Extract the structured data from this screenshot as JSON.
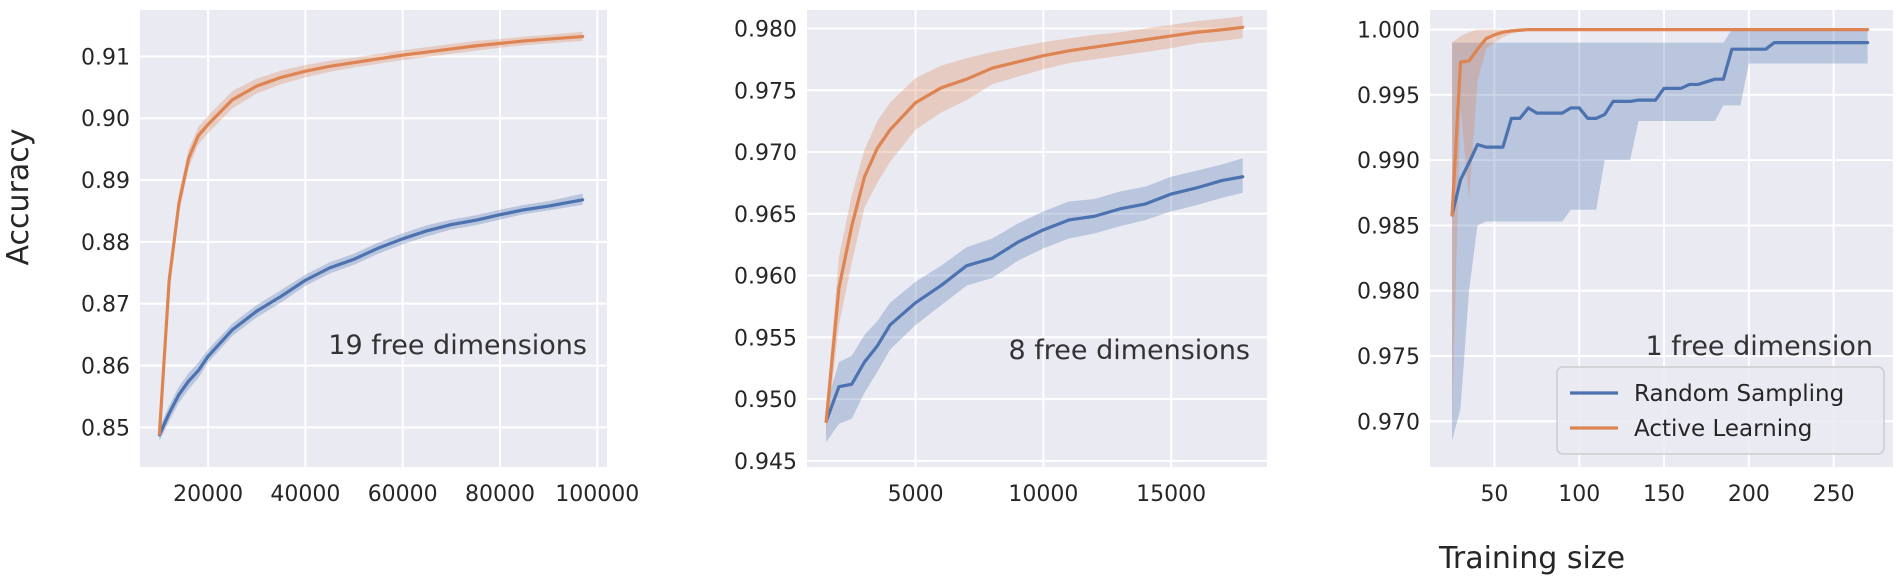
{
  "figure": {
    "ylabel": "Accuracy",
    "xlabel": "Training size"
  },
  "colors": {
    "panel_bg": "#eaeaf2",
    "grid": "#ffffff",
    "random_sampling": "#4c72b0",
    "active_learning": "#dd8452",
    "text": "#262626"
  },
  "legend": {
    "placement": "lower-right",
    "panel": 2,
    "entries": [
      "Random Sampling",
      "Active Learning"
    ]
  },
  "chart_data": [
    {
      "type": "line",
      "annotation": "19 free dimensions",
      "xlim": [
        6000,
        102000
      ],
      "ylim": [
        0.8436,
        0.9175
      ],
      "xticks": [
        20000,
        40000,
        60000,
        80000,
        100000
      ],
      "xtick_labels": [
        "20000",
        "40000",
        "60000",
        "80000",
        "100000"
      ],
      "yticks": [
        0.85,
        0.86,
        0.87,
        0.88,
        0.89,
        0.9,
        0.91
      ],
      "ytick_labels": [
        "0.85",
        "0.86",
        "0.87",
        "0.88",
        "0.89",
        "0.90",
        "0.91"
      ],
      "grid": true,
      "series": [
        {
          "name": "Random Sampling",
          "x": [
            10000,
            12000,
            14000,
            16000,
            18000,
            20000,
            25000,
            30000,
            35000,
            40000,
            45000,
            50000,
            55000,
            60000,
            65000,
            70000,
            75000,
            80000,
            85000,
            90000,
            97000
          ],
          "y": [
            0.8488,
            0.8523,
            0.8553,
            0.8575,
            0.8592,
            0.8615,
            0.8658,
            0.8688,
            0.8712,
            0.8738,
            0.8758,
            0.8772,
            0.879,
            0.8805,
            0.8818,
            0.8828,
            0.8835,
            0.8844,
            0.8852,
            0.8858,
            0.8868
          ],
          "lower": [
            0.8478,
            0.851,
            0.854,
            0.8562,
            0.858,
            0.8605,
            0.8648,
            0.8678,
            0.8702,
            0.8729,
            0.8749,
            0.8763,
            0.8781,
            0.8796,
            0.8809,
            0.882,
            0.8827,
            0.8836,
            0.8845,
            0.8851,
            0.886
          ],
          "upper": [
            0.85,
            0.8535,
            0.8566,
            0.8588,
            0.8605,
            0.8626,
            0.8668,
            0.8698,
            0.8722,
            0.8747,
            0.8767,
            0.8781,
            0.8799,
            0.8814,
            0.8827,
            0.8836,
            0.8843,
            0.8852,
            0.886,
            0.8866,
            0.8878
          ]
        },
        {
          "name": "Active Learning",
          "x": [
            10000,
            12000,
            14000,
            16000,
            18000,
            20000,
            25000,
            30000,
            35000,
            40000,
            45000,
            50000,
            55000,
            60000,
            65000,
            70000,
            75000,
            80000,
            85000,
            90000,
            97000
          ],
          "y": [
            0.849,
            0.8738,
            0.8862,
            0.8935,
            0.8972,
            0.899,
            0.903,
            0.9052,
            0.9066,
            0.9076,
            0.9084,
            0.909,
            0.9096,
            0.9102,
            0.9107,
            0.9112,
            0.9117,
            0.9121,
            0.9125,
            0.9128,
            0.9132
          ],
          "lower": [
            0.8478,
            0.872,
            0.8846,
            0.892,
            0.8958,
            0.8976,
            0.9016,
            0.904,
            0.9055,
            0.9066,
            0.9075,
            0.9082,
            0.9088,
            0.9094,
            0.9099,
            0.9104,
            0.9109,
            0.9114,
            0.9118,
            0.9121,
            0.9125
          ],
          "upper": [
            0.8502,
            0.8756,
            0.8878,
            0.895,
            0.8986,
            0.9004,
            0.9044,
            0.9064,
            0.9077,
            0.9086,
            0.9093,
            0.9098,
            0.9104,
            0.911,
            0.9115,
            0.912,
            0.9125,
            0.9128,
            0.9132,
            0.9135,
            0.914
          ]
        }
      ]
    },
    {
      "type": "line",
      "annotation": "8 free dimensions",
      "xlim": [
        750,
        18750
      ],
      "ylim": [
        0.9445,
        0.9815
      ],
      "xticks": [
        5000,
        10000,
        15000
      ],
      "xtick_labels": [
        "5000",
        "10000",
        "15000"
      ],
      "yticks": [
        0.945,
        0.95,
        0.955,
        0.96,
        0.965,
        0.97,
        0.975,
        0.98
      ],
      "ytick_labels": [
        "0.945",
        "0.950",
        "0.955",
        "0.960",
        "0.965",
        "0.970",
        "0.975",
        "0.980"
      ],
      "grid": true,
      "series": [
        {
          "name": "Random Sampling",
          "x": [
            1500,
            2000,
            2500,
            3000,
            3500,
            4000,
            5000,
            6000,
            7000,
            8000,
            9000,
            10000,
            11000,
            12000,
            13000,
            14000,
            15000,
            16000,
            17000,
            17800
          ],
          "y": [
            0.9482,
            0.951,
            0.9512,
            0.953,
            0.9543,
            0.956,
            0.9578,
            0.9592,
            0.9608,
            0.9614,
            0.9627,
            0.9637,
            0.9645,
            0.9648,
            0.9654,
            0.9658,
            0.9666,
            0.9671,
            0.9677,
            0.968
          ],
          "lower": [
            0.9465,
            0.948,
            0.9484,
            0.9505,
            0.9522,
            0.954,
            0.956,
            0.9576,
            0.9592,
            0.9598,
            0.9612,
            0.9622,
            0.963,
            0.9634,
            0.964,
            0.9645,
            0.9652,
            0.9657,
            0.9663,
            0.9667
          ],
          "upper": [
            0.9495,
            0.953,
            0.9535,
            0.9552,
            0.9563,
            0.9578,
            0.9595,
            0.9608,
            0.9623,
            0.963,
            0.9642,
            0.9652,
            0.966,
            0.9662,
            0.9668,
            0.9672,
            0.968,
            0.9685,
            0.969,
            0.9695
          ]
        },
        {
          "name": "Active Learning",
          "x": [
            1500,
            2000,
            2500,
            3000,
            3500,
            4000,
            5000,
            6000,
            7000,
            8000,
            9000,
            10000,
            11000,
            12000,
            13000,
            14000,
            15000,
            16000,
            17000,
            17800
          ],
          "y": [
            0.9482,
            0.959,
            0.964,
            0.968,
            0.9703,
            0.9718,
            0.974,
            0.9752,
            0.9759,
            0.9768,
            0.9773,
            0.9778,
            0.9782,
            0.9785,
            0.9788,
            0.9791,
            0.9794,
            0.9797,
            0.9799,
            0.9801
          ],
          "lower": [
            0.947,
            0.956,
            0.961,
            0.9655,
            0.9675,
            0.9692,
            0.9718,
            0.9732,
            0.9742,
            0.9755,
            0.9761,
            0.9767,
            0.9772,
            0.9775,
            0.9778,
            0.9781,
            0.9784,
            0.9788,
            0.979,
            0.9792
          ],
          "upper": [
            0.9494,
            0.9615,
            0.9665,
            0.9702,
            0.9725,
            0.974,
            0.976,
            0.977,
            0.9776,
            0.9781,
            0.9785,
            0.9789,
            0.9792,
            0.9795,
            0.9797,
            0.98,
            0.9803,
            0.9806,
            0.9808,
            0.981
          ]
        }
      ]
    },
    {
      "type": "line",
      "annotation": "1 free dimension",
      "xlim": [
        12,
        285
      ],
      "ylim": [
        0.9665,
        1.0015
      ],
      "xticks": [
        50,
        100,
        150,
        200,
        250
      ],
      "xtick_labels": [
        "50",
        "100",
        "150",
        "200",
        "250"
      ],
      "yticks": [
        0.97,
        0.975,
        0.98,
        0.985,
        0.99,
        0.995,
        1.0
      ],
      "ytick_labels": [
        "0.970",
        "0.975",
        "0.980",
        "0.985",
        "0.990",
        "0.995",
        "1.000"
      ],
      "grid": true,
      "series": [
        {
          "name": "Random Sampling",
          "x": [
            25,
            30,
            35,
            40,
            45,
            50,
            55,
            60,
            65,
            70,
            75,
            80,
            85,
            90,
            95,
            100,
            105,
            110,
            115,
            120,
            125,
            130,
            135,
            140,
            145,
            150,
            155,
            160,
            165,
            170,
            175,
            180,
            185,
            190,
            195,
            200,
            205,
            210,
            215,
            220,
            230,
            240,
            250,
            260,
            270
          ],
          "y": [
            0.9858,
            0.9885,
            0.9898,
            0.9912,
            0.991,
            0.991,
            0.991,
            0.9932,
            0.9932,
            0.994,
            0.9936,
            0.9936,
            0.9936,
            0.9936,
            0.994,
            0.994,
            0.9932,
            0.9932,
            0.9935,
            0.9945,
            0.9945,
            0.9945,
            0.9946,
            0.9946,
            0.9946,
            0.9955,
            0.9955,
            0.9955,
            0.9958,
            0.9958,
            0.996,
            0.9962,
            0.9962,
            0.9985,
            0.9985,
            0.9985,
            0.9985,
            0.9985,
            0.999,
            0.999,
            0.999,
            0.999,
            0.999,
            0.999,
            0.999
          ],
          "lower": [
            0.9685,
            0.971,
            0.98,
            0.985,
            0.9853,
            0.9853,
            0.9853,
            0.9853,
            0.9853,
            0.9853,
            0.9853,
            0.9853,
            0.9853,
            0.9853,
            0.9862,
            0.9862,
            0.9862,
            0.9862,
            0.99,
            0.99,
            0.99,
            0.99,
            0.993,
            0.993,
            0.993,
            0.993,
            0.993,
            0.993,
            0.993,
            0.993,
            0.993,
            0.993,
            0.9942,
            0.9942,
            0.9942,
            0.9974,
            0.9974,
            0.9974,
            0.9974,
            0.9974,
            0.9974,
            0.9974,
            0.9974,
            0.9974,
            0.9974
          ],
          "upper": [
            0.999,
            0.999,
            0.999,
            0.999,
            0.999,
            0.999,
            0.999,
            0.999,
            0.999,
            0.999,
            0.999,
            0.999,
            0.999,
            0.999,
            0.999,
            0.999,
            0.999,
            0.999,
            0.999,
            0.999,
            0.999,
            0.999,
            0.999,
            0.999,
            0.999,
            0.999,
            0.999,
            0.999,
            0.999,
            0.999,
            0.999,
            0.999,
            0.999,
            1.0,
            1.0,
            1.0,
            1.0,
            1.0,
            1.0,
            1.0,
            1.0,
            1.0,
            1.0,
            1.0,
            1.0
          ]
        },
        {
          "name": "Active Learning",
          "x": [
            25,
            30,
            35,
            40,
            45,
            50,
            55,
            60,
            70,
            80,
            100,
            150,
            200,
            250,
            270
          ],
          "y": [
            0.9858,
            0.9975,
            0.9976,
            0.9985,
            0.9993,
            0.9996,
            0.9998,
            0.9999,
            1.0,
            1.0,
            1.0,
            1.0,
            1.0,
            1.0,
            1.0
          ],
          "lower": [
            0.97,
            0.994,
            0.987,
            0.996,
            0.9985,
            0.999,
            0.9994,
            0.9997,
            1.0,
            1.0,
            1.0,
            1.0,
            1.0,
            1.0,
            1.0
          ],
          "upper": [
            0.999,
            0.9995,
            0.9998,
            1.0,
            1.0,
            1.0,
            1.0,
            1.0,
            1.0,
            1.0,
            1.0,
            1.0,
            1.0,
            1.0,
            1.0
          ]
        }
      ]
    }
  ]
}
